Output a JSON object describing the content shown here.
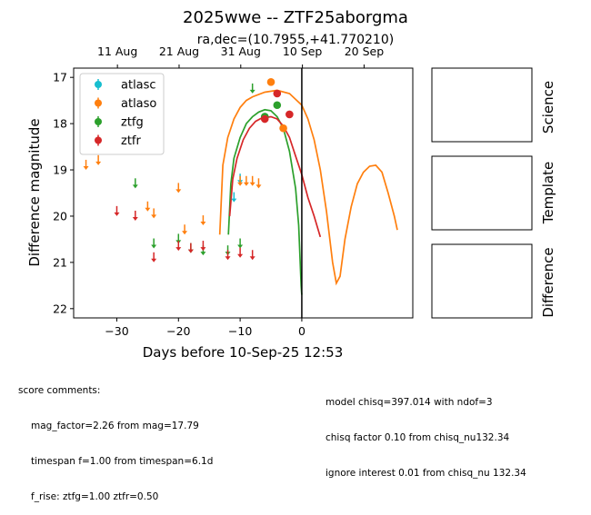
{
  "chart_data": {
    "type": "scatter",
    "title": "2025wwe -- ZTF25aborgma",
    "subtitle": "ra,dec=(10.7955,+41.770210)",
    "xlabel": "Days before 10-Sep-25 12:53",
    "ylabel": "Difference magnitude",
    "xlim": [
      -37,
      18
    ],
    "ylim": [
      22.2,
      16.8
    ],
    "y_inverted": true,
    "x_ticks": [
      -30,
      -20,
      -10,
      0
    ],
    "x_tick_labels": [
      "−30",
      "−20",
      "−10",
      "0"
    ],
    "y_ticks": [
      17,
      18,
      19,
      20,
      21,
      22
    ],
    "y_tick_labels": [
      "17",
      "18",
      "19",
      "20",
      "21",
      "22"
    ],
    "top_axis_ticks": [
      {
        "x": -29.9,
        "label": "11 Aug"
      },
      {
        "x": -19.9,
        "label": "21 Aug"
      },
      {
        "x": -9.9,
        "label": "31 Aug"
      },
      {
        "x": 0.1,
        "label": "10 Sep"
      },
      {
        "x": 10.1,
        "label": "20 Sep"
      }
    ],
    "vline_x": 0,
    "grid": false,
    "legend_position": "upper-left",
    "series": [
      {
        "name": "atlasc",
        "color": "#17becf",
        "detections": [],
        "limits": [
          {
            "x": -11,
            "y": 19.6
          },
          {
            "x": -10,
            "y": 19.2
          }
        ]
      },
      {
        "name": "atlaso",
        "color": "#ff7f0e",
        "detections": [
          {
            "x": -5,
            "y": 17.1
          },
          {
            "x": -3,
            "y": 18.1
          }
        ],
        "limits": [
          {
            "x": -35,
            "y": 18.9
          },
          {
            "x": -33,
            "y": 18.8
          },
          {
            "x": -25,
            "y": 19.8
          },
          {
            "x": -24,
            "y": 19.95
          },
          {
            "x": -20,
            "y": 19.4
          },
          {
            "x": -19,
            "y": 20.3
          },
          {
            "x": -16,
            "y": 20.1
          },
          {
            "x": -10,
            "y": 19.25
          },
          {
            "x": -9,
            "y": 19.25
          },
          {
            "x": -8,
            "y": 19.25
          },
          {
            "x": -7,
            "y": 19.3
          }
        ]
      },
      {
        "name": "ztfg",
        "color": "#2ca02c",
        "detections": [
          {
            "x": -6,
            "y": 17.85
          },
          {
            "x": -4,
            "y": 17.6
          }
        ],
        "limits": [
          {
            "x": -27,
            "y": 19.3
          },
          {
            "x": -24,
            "y": 20.6
          },
          {
            "x": -20,
            "y": 20.5
          },
          {
            "x": -18,
            "y": 20.7
          },
          {
            "x": -16,
            "y": 20.75
          },
          {
            "x": -12,
            "y": 20.75
          },
          {
            "x": -10,
            "y": 20.6
          },
          {
            "x": -8,
            "y": 17.25
          }
        ]
      },
      {
        "name": "ztfr",
        "color": "#d62728",
        "detections": [
          {
            "x": -6,
            "y": 17.9
          },
          {
            "x": -4,
            "y": 17.35
          },
          {
            "x": -2,
            "y": 17.8
          }
        ],
        "limits": [
          {
            "x": -30,
            "y": 19.9
          },
          {
            "x": -27,
            "y": 20.0
          },
          {
            "x": -24,
            "y": 20.9
          },
          {
            "x": -20,
            "y": 20.65
          },
          {
            "x": -18,
            "y": 20.7
          },
          {
            "x": -16,
            "y": 20.65
          },
          {
            "x": -12,
            "y": 20.85
          },
          {
            "x": -10,
            "y": 20.8
          },
          {
            "x": -8,
            "y": 20.85
          }
        ]
      }
    ],
    "models": [
      {
        "name": "atlaso",
        "color": "#ff7f0e",
        "points": [
          [
            -13.3,
            20.4
          ],
          [
            -12.8,
            18.9
          ],
          [
            -12,
            18.3
          ],
          [
            -11,
            17.9
          ],
          [
            -10,
            17.65
          ],
          [
            -9,
            17.5
          ],
          [
            -8,
            17.42
          ],
          [
            -6,
            17.32
          ],
          [
            -4,
            17.28
          ],
          [
            -2,
            17.35
          ],
          [
            0,
            17.6
          ],
          [
            1,
            17.9
          ],
          [
            2,
            18.35
          ],
          [
            3,
            19.0
          ],
          [
            4,
            19.9
          ],
          [
            5,
            21.0
          ],
          [
            5.6,
            21.45
          ],
          [
            6.2,
            21.3
          ],
          [
            7,
            20.5
          ],
          [
            8,
            19.8
          ],
          [
            9,
            19.3
          ],
          [
            10,
            19.05
          ],
          [
            11,
            18.92
          ],
          [
            12,
            18.9
          ],
          [
            13,
            19.05
          ],
          [
            14,
            19.5
          ],
          [
            15,
            20.0
          ],
          [
            15.5,
            20.3
          ]
        ]
      },
      {
        "name": "ztfg",
        "color": "#2ca02c",
        "points": [
          [
            -11.9,
            20.4
          ],
          [
            -11.5,
            19.3
          ],
          [
            -11,
            18.75
          ],
          [
            -10,
            18.3
          ],
          [
            -9,
            18.0
          ],
          [
            -8,
            17.85
          ],
          [
            -7,
            17.75
          ],
          [
            -6,
            17.7
          ],
          [
            -5,
            17.72
          ],
          [
            -4,
            17.85
          ],
          [
            -3,
            18.1
          ],
          [
            -2,
            18.6
          ],
          [
            -1,
            19.4
          ],
          [
            -0.5,
            20.2
          ],
          [
            -0.1,
            21.5
          ],
          [
            0,
            21.7
          ]
        ]
      },
      {
        "name": "ztfr",
        "color": "#d62728",
        "points": [
          [
            -11.7,
            20.0
          ],
          [
            -11.2,
            19.2
          ],
          [
            -10.5,
            18.75
          ],
          [
            -9.5,
            18.35
          ],
          [
            -8.5,
            18.1
          ],
          [
            -7.5,
            17.95
          ],
          [
            -6.5,
            17.88
          ],
          [
            -5,
            17.85
          ],
          [
            -4,
            17.9
          ],
          [
            -3,
            18.05
          ],
          [
            -2,
            18.3
          ],
          [
            -1,
            18.7
          ],
          [
            0,
            19.1
          ],
          [
            1,
            19.6
          ],
          [
            2,
            20.0
          ],
          [
            3,
            20.45
          ]
        ]
      }
    ]
  },
  "side_panels": [
    "Science",
    "Template",
    "Difference"
  ],
  "comments_left": {
    "header": "score comments:",
    "lines": [
      "mag_factor=2.26 from mag=17.79",
      "timespan f=1.00 from timespan=6.1d",
      "f_rise: ztfg=1.00 ztfr=0.50"
    ]
  },
  "comments_right": [
    "model chisq=397.014 with ndof=3",
    "chisq factor 0.10 from chisq_nu132.34",
    "ignore interest 0.01 from chisq_nu 132.34"
  ]
}
